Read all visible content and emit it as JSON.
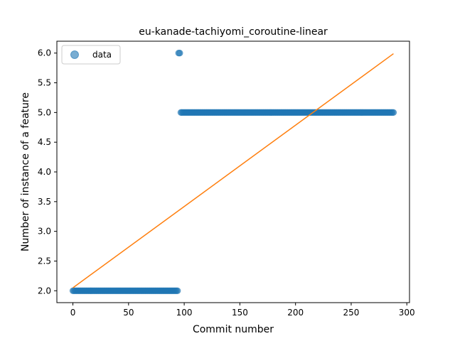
{
  "colors": {
    "data": "#1f77b4",
    "fit": "#ff7f0e"
  },
  "chart_data": {
    "type": "scatter",
    "title": "eu-kanade-tachiyomi_coroutine-linear",
    "xlabel": "Commit number",
    "ylabel": "Number of instance of a feature",
    "xlim": [
      -14.4,
      302.4
    ],
    "ylim": [
      1.8,
      6.2
    ],
    "xticks": [
      0,
      50,
      100,
      150,
      200,
      250,
      300
    ],
    "yticks": [
      2.0,
      2.5,
      3.0,
      3.5,
      4.0,
      4.5,
      5.0,
      5.5,
      6.0
    ],
    "xtick_labels": [
      "0",
      "50",
      "100",
      "150",
      "200",
      "250",
      "300"
    ],
    "ytick_labels": [
      "2.0",
      "2.5",
      "3.0",
      "3.5",
      "4.0",
      "4.5",
      "5.0",
      "5.5",
      "6.0"
    ],
    "grid": false,
    "legend": {
      "position": "upper-left",
      "entries": [
        "data"
      ]
    },
    "series": [
      {
        "name": "data",
        "kind": "scatter",
        "segments": [
          {
            "x_from": 0,
            "x_to": 94,
            "y": 2.0
          },
          {
            "x_from": 95,
            "x_to": 96,
            "y": 6.0
          },
          {
            "x_from": 97,
            "x_to": 288,
            "y": 5.0
          }
        ]
      },
      {
        "kind": "line",
        "x": [
          0,
          288
        ],
        "y": [
          2.05,
          5.99
        ]
      }
    ]
  }
}
